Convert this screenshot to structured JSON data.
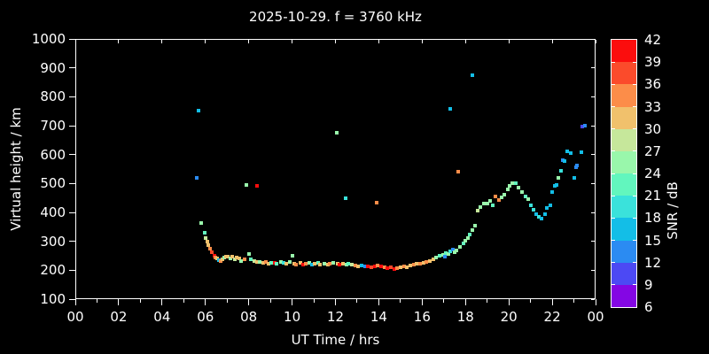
{
  "chart_data": {
    "type": "scatter",
    "title": "2025-10-29. f = 3760 kHz",
    "xlabel": "UT Time / hrs",
    "ylabel": "Virtual height / km",
    "xlim": [
      0,
      24
    ],
    "ylim": [
      100,
      1000
    ],
    "grid": false,
    "x_tick_values": [
      0,
      2,
      4,
      6,
      8,
      10,
      12,
      14,
      16,
      18,
      20,
      22,
      24
    ],
    "x_tick_labels": [
      "00",
      "02",
      "04",
      "06",
      "08",
      "10",
      "12",
      "14",
      "16",
      "18",
      "20",
      "22",
      "00"
    ],
    "x_minor_tick_values": [
      1,
      3,
      5,
      7,
      9,
      11,
      13,
      15,
      17,
      19,
      21,
      23
    ],
    "y_tick_values": [
      100,
      200,
      300,
      400,
      500,
      600,
      700,
      800,
      900,
      1000
    ],
    "colorbar": {
      "label": "SNR / dB",
      "tick_values": [
        6,
        9,
        12,
        15,
        18,
        21,
        24,
        27,
        30,
        33,
        36,
        39,
        42
      ],
      "segment_colors_low_to_high": [
        "#8406E4",
        "#4C49F4",
        "#2B8BF2",
        "#13BEE7",
        "#3AE2DB",
        "#62F6BE",
        "#99F7AB",
        "#C6E79B",
        "#F1C16C",
        "#FC8D49",
        "#FB4B2B",
        "#FB0D0D"
      ]
    },
    "points_format": [
      "ut_hours",
      "virtual_height_km",
      "snr_db"
    ],
    "points": [
      [
        5.6,
        519,
        13
      ],
      [
        5.68,
        752,
        16
      ],
      [
        5.82,
        363,
        25
      ],
      [
        5.95,
        330,
        22
      ],
      [
        6.0,
        312,
        28
      ],
      [
        6.08,
        300,
        31
      ],
      [
        6.15,
        288,
        31
      ],
      [
        6.23,
        276,
        34
      ],
      [
        6.3,
        263,
        37
      ],
      [
        6.4,
        251,
        41
      ],
      [
        6.47,
        245,
        34
      ],
      [
        6.55,
        241,
        31
      ],
      [
        6.62,
        236,
        16
      ],
      [
        6.7,
        232,
        34
      ],
      [
        6.78,
        237,
        31
      ],
      [
        6.85,
        243,
        25
      ],
      [
        6.95,
        246,
        31
      ],
      [
        7.05,
        247,
        31
      ],
      [
        7.15,
        241,
        25
      ],
      [
        7.25,
        247,
        31
      ],
      [
        7.35,
        238,
        28
      ],
      [
        7.45,
        244,
        31
      ],
      [
        7.55,
        241,
        31
      ],
      [
        7.65,
        232,
        25
      ],
      [
        7.8,
        238,
        34
      ],
      [
        7.9,
        495,
        25
      ],
      [
        8.0,
        256,
        25
      ],
      [
        8.1,
        238,
        22
      ],
      [
        8.25,
        232,
        28
      ],
      [
        8.4,
        492,
        41
      ],
      [
        8.4,
        229,
        31
      ],
      [
        8.5,
        229,
        25
      ],
      [
        8.65,
        226,
        31
      ],
      [
        8.8,
        229,
        34
      ],
      [
        8.9,
        223,
        31
      ],
      [
        9.05,
        226,
        22
      ],
      [
        9.2,
        226,
        41
      ],
      [
        9.3,
        223,
        22
      ],
      [
        9.5,
        229,
        25
      ],
      [
        9.6,
        226,
        19
      ],
      [
        9.75,
        223,
        31
      ],
      [
        9.9,
        229,
        25
      ],
      [
        10.0,
        250,
        25
      ],
      [
        10.1,
        223,
        31
      ],
      [
        10.2,
        220,
        34
      ],
      [
        10.4,
        226,
        31
      ],
      [
        10.5,
        220,
        41
      ],
      [
        10.65,
        223,
        34
      ],
      [
        10.8,
        226,
        25
      ],
      [
        10.9,
        220,
        16
      ],
      [
        11.05,
        223,
        31
      ],
      [
        11.2,
        226,
        22
      ],
      [
        11.3,
        220,
        31
      ],
      [
        11.5,
        223,
        25
      ],
      [
        11.65,
        220,
        31
      ],
      [
        11.75,
        223,
        34
      ],
      [
        11.9,
        226,
        25
      ],
      [
        12.05,
        675,
        25
      ],
      [
        12.1,
        223,
        31
      ],
      [
        12.2,
        220,
        41
      ],
      [
        12.35,
        223,
        31
      ],
      [
        12.45,
        449,
        19
      ],
      [
        12.5,
        220,
        25
      ],
      [
        12.6,
        223,
        22
      ],
      [
        12.75,
        220,
        28
      ],
      [
        12.9,
        216,
        34
      ],
      [
        13.05,
        213,
        31
      ],
      [
        13.2,
        216,
        16
      ],
      [
        13.35,
        213,
        13
      ],
      [
        13.5,
        213,
        41
      ],
      [
        13.65,
        210,
        37
      ],
      [
        13.8,
        213,
        41
      ],
      [
        13.9,
        434,
        34
      ],
      [
        13.95,
        216,
        34
      ],
      [
        14.1,
        213,
        41
      ],
      [
        14.25,
        210,
        34
      ],
      [
        14.4,
        207,
        41
      ],
      [
        14.55,
        210,
        37
      ],
      [
        14.7,
        205,
        41
      ],
      [
        14.85,
        207,
        34
      ],
      [
        15.0,
        210,
        31
      ],
      [
        15.15,
        213,
        34
      ],
      [
        15.3,
        210,
        31
      ],
      [
        15.45,
        216,
        31
      ],
      [
        15.6,
        220,
        34
      ],
      [
        15.75,
        223,
        31
      ],
      [
        15.9,
        223,
        34
      ],
      [
        16.05,
        226,
        31
      ],
      [
        16.2,
        229,
        34
      ],
      [
        16.35,
        232,
        31
      ],
      [
        16.5,
        238,
        31
      ],
      [
        16.65,
        244,
        25
      ],
      [
        16.8,
        250,
        22
      ],
      [
        16.95,
        253,
        25
      ],
      [
        17.05,
        247,
        13
      ],
      [
        17.1,
        259,
        22
      ],
      [
        17.2,
        256,
        25
      ],
      [
        17.3,
        758,
        16
      ],
      [
        17.3,
        265,
        19
      ],
      [
        17.4,
        271,
        13
      ],
      [
        17.5,
        262,
        25
      ],
      [
        17.6,
        268,
        25
      ],
      [
        17.65,
        541,
        34
      ],
      [
        17.75,
        280,
        25
      ],
      [
        17.9,
        292,
        22
      ],
      [
        18.0,
        302,
        25
      ],
      [
        18.1,
        312,
        25
      ],
      [
        18.2,
        325,
        22
      ],
      [
        18.3,
        874,
        16
      ],
      [
        18.3,
        340,
        25
      ],
      [
        18.45,
        355,
        25
      ],
      [
        18.55,
        406,
        28
      ],
      [
        18.7,
        418,
        25
      ],
      [
        18.85,
        430,
        25
      ],
      [
        19.0,
        430,
        25
      ],
      [
        19.15,
        440,
        25
      ],
      [
        19.25,
        424,
        22
      ],
      [
        19.4,
        455,
        34
      ],
      [
        19.55,
        443,
        34
      ],
      [
        19.65,
        452,
        25
      ],
      [
        19.8,
        461,
        25
      ],
      [
        19.95,
        480,
        25
      ],
      [
        20.05,
        492,
        25
      ],
      [
        20.15,
        501,
        25
      ],
      [
        20.3,
        501,
        22
      ],
      [
        20.45,
        486,
        25
      ],
      [
        20.6,
        470,
        25
      ],
      [
        20.75,
        455,
        22
      ],
      [
        20.9,
        446,
        25
      ],
      [
        21.0,
        424,
        19
      ],
      [
        21.15,
        409,
        19
      ],
      [
        21.25,
        394,
        16
      ],
      [
        21.4,
        385,
        19
      ],
      [
        21.5,
        379,
        16
      ],
      [
        21.65,
        394,
        16
      ],
      [
        21.75,
        415,
        16
      ],
      [
        21.9,
        424,
        16
      ],
      [
        22.0,
        470,
        16
      ],
      [
        22.1,
        492,
        16
      ],
      [
        22.2,
        495,
        16
      ],
      [
        22.3,
        519,
        25
      ],
      [
        22.4,
        544,
        19
      ],
      [
        22.5,
        581,
        13
      ],
      [
        22.55,
        578,
        16
      ],
      [
        22.7,
        611,
        16
      ],
      [
        22.85,
        605,
        16
      ],
      [
        23.0,
        519,
        16
      ],
      [
        23.1,
        556,
        13
      ],
      [
        23.15,
        562,
        13
      ],
      [
        23.35,
        608,
        16
      ],
      [
        23.4,
        697,
        10
      ],
      [
        23.5,
        700,
        13
      ]
    ]
  },
  "colors": {
    "background": "#000000",
    "axes": "#ffffff",
    "text": "#ffffff"
  }
}
